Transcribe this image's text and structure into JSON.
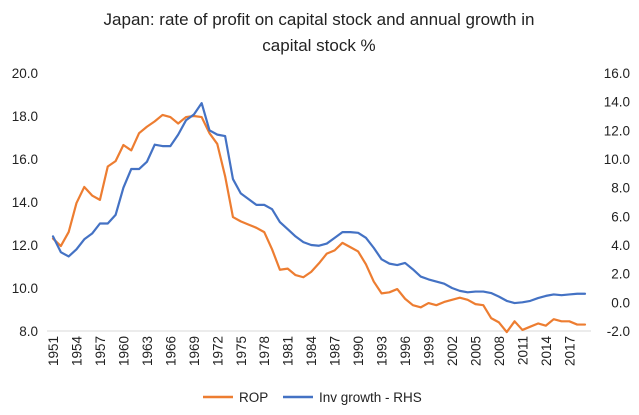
{
  "chart_data": {
    "type": "line",
    "title": "Japan: rate of profit on capital stock and annual growth in capital stock %",
    "title_lines": [
      "Japan: rate of profit on capital stock and annual growth in",
      "capital stock %"
    ],
    "left_axis": {
      "ylim": [
        8.0,
        20.0
      ],
      "ticks": [
        "20.0",
        "18.0",
        "16.0",
        "14.0",
        "12.0",
        "10.0",
        "8.0"
      ],
      "tick_values": [
        20,
        18,
        16,
        14,
        12,
        10,
        8
      ]
    },
    "right_axis": {
      "ylim": [
        -2.0,
        16.0
      ],
      "ticks": [
        "16.0",
        "14.0",
        "12.0",
        "10.0",
        "8.0",
        "6.0",
        "4.0",
        "2.0",
        "0.0",
        "-2.0"
      ],
      "tick_values": [
        16,
        14,
        12,
        10,
        8,
        6,
        4,
        2,
        0,
        -2
      ]
    },
    "x_tick_labels": [
      "1951",
      "1954",
      "1957",
      "1960",
      "1963",
      "1966",
      "1969",
      "1972",
      "1975",
      "1978",
      "1981",
      "1984",
      "1987",
      "1990",
      "1993",
      "1996",
      "1999",
      "2002",
      "2005",
      "2008",
      "2011",
      "2014",
      "2017"
    ],
    "x_tick_values": [
      1951,
      1954,
      1957,
      1960,
      1963,
      1966,
      1969,
      1972,
      1975,
      1978,
      1981,
      1984,
      1987,
      1990,
      1993,
      1996,
      1999,
      2002,
      2005,
      2008,
      2011,
      2014,
      2017
    ],
    "grid": false,
    "legend_placement": "bottom",
    "x": [
      1951,
      1952,
      1953,
      1954,
      1955,
      1956,
      1957,
      1958,
      1959,
      1960,
      1961,
      1962,
      1963,
      1964,
      1965,
      1966,
      1967,
      1968,
      1969,
      1970,
      1971,
      1972,
      1973,
      1974,
      1975,
      1976,
      1977,
      1978,
      1979,
      1980,
      1981,
      1982,
      1983,
      1984,
      1985,
      1986,
      1987,
      1988,
      1989,
      1990,
      1991,
      1992,
      1993,
      1994,
      1995,
      1996,
      1997,
      1998,
      1999,
      2000,
      2001,
      2002,
      2003,
      2004,
      2005,
      2006,
      2007,
      2008,
      2009,
      2010,
      2011,
      2012,
      2013,
      2014,
      2015,
      2016,
      2017,
      2018,
      2019
    ],
    "series": [
      {
        "name": "ROP",
        "axis": "left",
        "color": "#ED7D31",
        "values": [
          12.3,
          11.95,
          12.6,
          13.95,
          14.7,
          14.3,
          14.1,
          15.65,
          15.9,
          16.65,
          16.4,
          17.2,
          17.5,
          17.75,
          18.05,
          17.95,
          17.65,
          17.95,
          18.0,
          17.95,
          17.2,
          16.7,
          15.2,
          13.3,
          13.1,
          12.95,
          12.8,
          12.6,
          11.8,
          10.85,
          10.9,
          10.6,
          10.5,
          10.75,
          11.15,
          11.6,
          11.75,
          12.1,
          11.9,
          11.7,
          11.1,
          10.3,
          9.75,
          9.8,
          9.95,
          9.5,
          9.2,
          9.1,
          9.3,
          9.2,
          9.35,
          9.45,
          9.55,
          9.45,
          9.25,
          9.2,
          8.6,
          8.4,
          7.95,
          8.45,
          8.05,
          8.2,
          8.35,
          8.25,
          8.55,
          8.45,
          8.45,
          8.3,
          8.3
        ]
      },
      {
        "name": "Inv growth - RHS",
        "axis": "right",
        "color": "#4472C4",
        "values": [
          4.6,
          3.5,
          3.2,
          3.7,
          4.4,
          4.8,
          5.5,
          5.5,
          6.1,
          8.0,
          9.3,
          9.3,
          9.8,
          11.0,
          10.9,
          10.9,
          11.7,
          12.7,
          13.1,
          13.9,
          12.0,
          11.7,
          11.6,
          8.6,
          7.6,
          7.2,
          6.8,
          6.8,
          6.5,
          5.6,
          5.1,
          4.6,
          4.2,
          4.0,
          3.95,
          4.1,
          4.5,
          4.9,
          4.9,
          4.85,
          4.5,
          3.8,
          3.0,
          2.7,
          2.6,
          2.75,
          2.3,
          1.8,
          1.6,
          1.45,
          1.3,
          1.0,
          0.8,
          0.7,
          0.75,
          0.75,
          0.65,
          0.4,
          0.1,
          -0.05,
          0.0,
          0.1,
          0.3,
          0.45,
          0.55,
          0.5,
          0.55,
          0.6,
          0.6
        ]
      }
    ]
  }
}
